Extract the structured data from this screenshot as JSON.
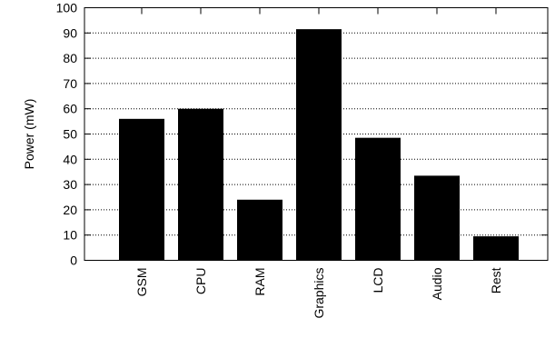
{
  "chart_data": {
    "type": "bar",
    "title": "",
    "xlabel": "",
    "ylabel": "Power (mW)",
    "categories": [
      "GSM",
      "CPU",
      "RAM",
      "Graphics",
      "LCD",
      "Audio",
      "Rest"
    ],
    "values": [
      56,
      60,
      24,
      91.5,
      48.5,
      33.5,
      9.5
    ],
    "ylim": [
      0,
      100
    ],
    "yticks": [
      "0",
      "10",
      "20",
      "30",
      "40",
      "50",
      "60",
      "70",
      "80",
      "90",
      "100"
    ],
    "grid": "horizontal-dotted",
    "bar_color": "#000000",
    "legend": "none"
  }
}
